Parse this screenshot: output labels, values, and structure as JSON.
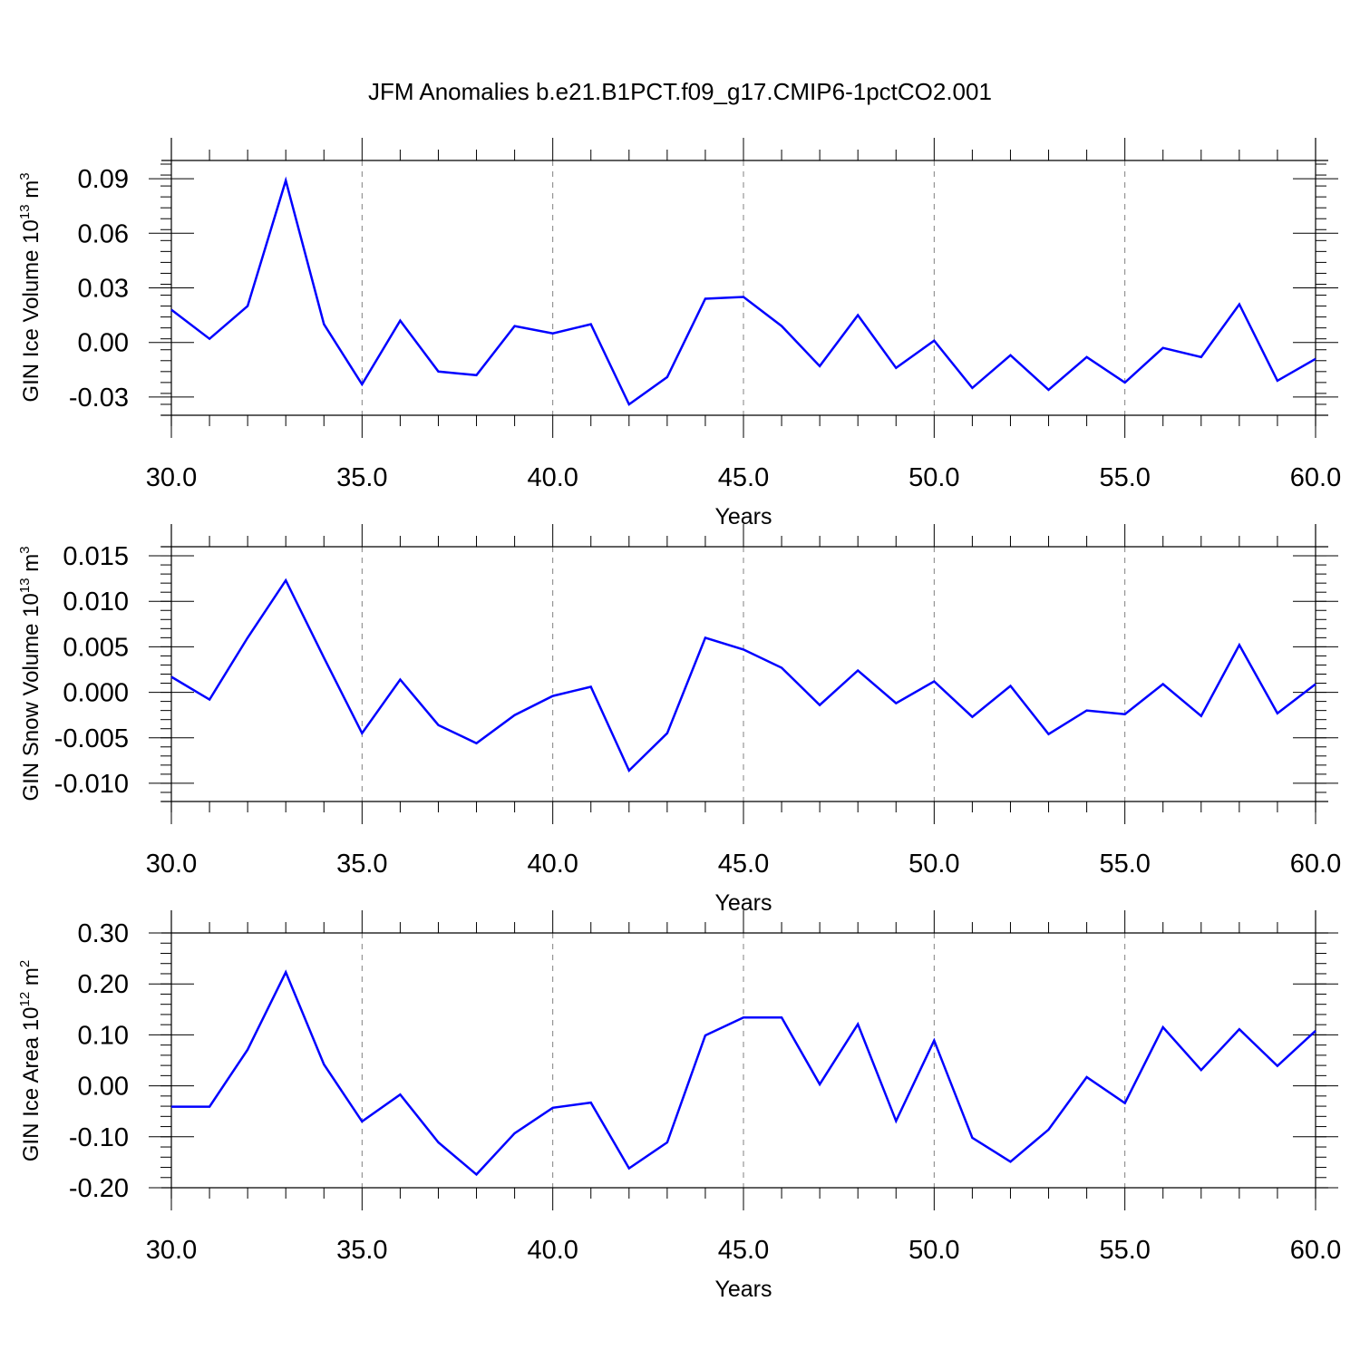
{
  "title": "JFM Anomalies b.e21.B1PCT.f09_g17.CMIP6-1pctCO2.001",
  "colors": {
    "line": "#0000ff",
    "axis": "#000000",
    "grid": "#808080"
  },
  "chart_data": [
    {
      "type": "line",
      "xlabel": "Years",
      "ylabel_main": "GIN Ice Volume 10",
      "ylabel_exp": "13",
      "ylabel_unit": " m",
      "ylabel_unit_exp": "3",
      "xlim": [
        30,
        60
      ],
      "ylim": [
        -0.04,
        0.1
      ],
      "x_ticks": [
        30,
        35,
        40,
        45,
        50,
        55,
        60
      ],
      "x_tick_labels": [
        "30.0",
        "35.0",
        "40.0",
        "45.0",
        "50.0",
        "55.0",
        "60.0"
      ],
      "y_ticks": [
        -0.03,
        0.0,
        0.03,
        0.06,
        0.09
      ],
      "y_tick_labels": [
        "-0.03",
        "0.00",
        "0.03",
        "0.06",
        "0.09"
      ],
      "y_minor_step": 0.006,
      "grid": "vertical-dashed",
      "x": [
        30,
        31,
        32,
        33,
        34,
        35,
        36,
        37,
        38,
        39,
        40,
        41,
        42,
        43,
        44,
        45,
        46,
        47,
        48,
        49,
        50,
        51,
        52,
        53,
        54,
        55,
        56,
        57,
        58,
        59,
        60
      ],
      "y": [
        0.018,
        0.002,
        0.02,
        0.089,
        0.01,
        -0.023,
        0.012,
        -0.016,
        -0.018,
        0.009,
        0.005,
        0.01,
        -0.034,
        -0.019,
        0.024,
        0.025,
        0.009,
        -0.013,
        0.015,
        -0.014,
        0.001,
        -0.025,
        -0.007,
        -0.026,
        -0.008,
        -0.022,
        -0.003,
        -0.008,
        0.021,
        -0.021,
        -0.009
      ]
    },
    {
      "type": "line",
      "xlabel": "Years",
      "ylabel_main": "GIN Snow Volume 10",
      "ylabel_exp": "13",
      "ylabel_unit": " m",
      "ylabel_unit_exp": "3",
      "xlim": [
        30,
        60
      ],
      "ylim": [
        -0.012,
        0.016
      ],
      "x_ticks": [
        30,
        35,
        40,
        45,
        50,
        55,
        60
      ],
      "x_tick_labels": [
        "30.0",
        "35.0",
        "40.0",
        "45.0",
        "50.0",
        "55.0",
        "60.0"
      ],
      "y_ticks": [
        -0.01,
        -0.005,
        0.0,
        0.005,
        0.01,
        0.015
      ],
      "y_tick_labels": [
        "-0.010",
        "-0.005",
        "0.000",
        "0.005",
        "0.010",
        "0.015"
      ],
      "y_minor_step": 0.001,
      "grid": "vertical-dashed",
      "x": [
        30,
        31,
        32,
        33,
        34,
        35,
        36,
        37,
        38,
        39,
        40,
        41,
        42,
        43,
        44,
        45,
        46,
        47,
        48,
        49,
        50,
        51,
        52,
        53,
        54,
        55,
        56,
        57,
        58,
        59,
        60
      ],
      "y": [
        0.0017,
        -0.0008,
        0.006,
        0.0123,
        0.0038,
        -0.0045,
        0.0014,
        -0.0036,
        -0.0056,
        -0.0025,
        -0.0004,
        0.0006,
        -0.0086,
        -0.0045,
        0.006,
        0.0047,
        0.0027,
        -0.0014,
        0.0024,
        -0.0012,
        0.0012,
        -0.0027,
        0.0007,
        -0.0046,
        -0.002,
        -0.0024,
        0.0009,
        -0.0026,
        0.0052,
        -0.0023,
        0.0009
      ]
    },
    {
      "type": "line",
      "xlabel": "Years",
      "ylabel_main": "GIN Ice Area 10",
      "ylabel_exp": "12",
      "ylabel_unit": " m",
      "ylabel_unit_exp": "2",
      "xlim": [
        30,
        60
      ],
      "ylim": [
        -0.2,
        0.3
      ],
      "x_ticks": [
        30,
        35,
        40,
        45,
        50,
        55,
        60
      ],
      "x_tick_labels": [
        "30.0",
        "35.0",
        "40.0",
        "45.0",
        "50.0",
        "55.0",
        "60.0"
      ],
      "y_ticks": [
        -0.2,
        -0.1,
        0.0,
        0.1,
        0.2,
        0.3
      ],
      "y_tick_labels": [
        "-0.20",
        "-0.10",
        "0.00",
        "0.10",
        "0.20",
        "0.30"
      ],
      "y_minor_step": 0.02,
      "grid": "vertical-dashed",
      "x": [
        30,
        31,
        32,
        33,
        34,
        35,
        36,
        37,
        38,
        39,
        40,
        41,
        42,
        43,
        44,
        45,
        46,
        47,
        48,
        49,
        50,
        51,
        52,
        53,
        54,
        55,
        56,
        57,
        58,
        59,
        60
      ],
      "y": [
        -0.041,
        -0.041,
        0.071,
        0.223,
        0.042,
        -0.07,
        -0.017,
        -0.111,
        -0.174,
        -0.093,
        -0.043,
        -0.033,
        -0.162,
        -0.111,
        0.099,
        0.134,
        0.134,
        0.003,
        0.121,
        -0.069,
        0.089,
        -0.102,
        -0.149,
        -0.086,
        0.017,
        -0.034,
        0.115,
        0.031,
        0.111,
        0.039,
        0.108
      ]
    }
  ]
}
